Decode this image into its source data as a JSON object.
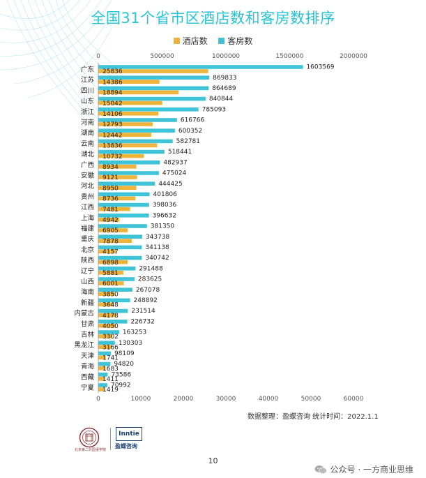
{
  "title": "全国31个省市区酒店数和客房数排序",
  "legend": [
    {
      "name": "酒店数",
      "color": "#f0b33a"
    },
    {
      "name": "客房数",
      "color": "#3fc3d7"
    }
  ],
  "source": "数据整理：盈蝶咨询  统计时间：2022.1.1",
  "page_number": "10",
  "watermark": "公众号 · 一方商业思维",
  "logo": {
    "brand": "Inntie",
    "brand_name": "盈蝶咨询",
    "seal_caption": "北京第二外国语学院"
  },
  "icons": {
    "wechat": "wechat-icon",
    "seal": "school-seal-icon"
  },
  "chart_data": {
    "type": "bar",
    "orientation": "horizontal",
    "title": "全国31个省市区酒店数和客房数排序",
    "legend_position": "top",
    "grid": false,
    "categories": [
      "广东",
      "江苏",
      "四川",
      "山东",
      "浙江",
      "河南",
      "湖南",
      "云南",
      "湖北",
      "广西",
      "安徽",
      "河北",
      "贵州",
      "江西",
      "上海",
      "福建",
      "重庆",
      "北京",
      "陕西",
      "辽宁",
      "山西",
      "海南",
      "新疆",
      "内蒙古",
      "甘肃",
      "吉林",
      "黑龙江",
      "天津",
      "青海",
      "西藏",
      "宁夏"
    ],
    "series": [
      {
        "name": "客房数",
        "axis": "top",
        "color": "#3fc3d7",
        "values": [
          1603569,
          869833,
          864689,
          840844,
          785093,
          616766,
          600352,
          582781,
          518441,
          482937,
          475024,
          444425,
          401806,
          398036,
          396632,
          381350,
          343738,
          341138,
          340742,
          291488,
          283625,
          267078,
          248892,
          231514,
          226732,
          163253,
          130303,
          98109,
          94820,
          73586,
          70992
        ]
      },
      {
        "name": "酒店数",
        "axis": "bottom",
        "color": "#f0b33a",
        "values": [
          25836,
          14386,
          18894,
          15042,
          14106,
          12793,
          12442,
          13836,
          10732,
          8934,
          9121,
          8950,
          8736,
          7481,
          4942,
          6905,
          7878,
          4157,
          6898,
          5881,
          6001,
          3850,
          3648,
          4178,
          4050,
          3302,
          3166,
          1741,
          1683,
          1411,
          1419
        ]
      }
    ],
    "x_top": {
      "lim": [
        0,
        2000000
      ],
      "ticks": [
        0,
        500000,
        1000000,
        1500000,
        2000000
      ]
    },
    "x_bottom": {
      "lim": [
        0,
        60000
      ],
      "ticks": [
        0,
        10000,
        20000,
        30000,
        40000,
        50000,
        60000
      ]
    }
  }
}
